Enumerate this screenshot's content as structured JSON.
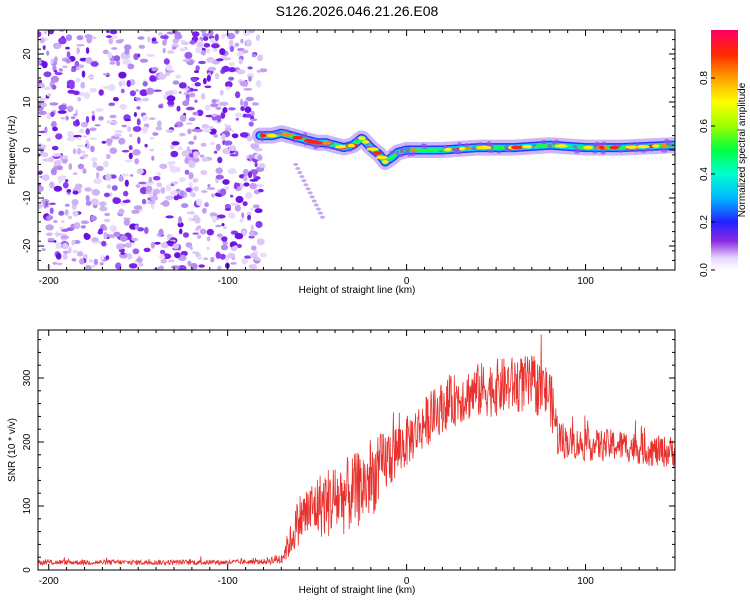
{
  "title": "S126.2026.046.21.26.E08",
  "chart_data": [
    {
      "type": "heatmap",
      "xlabel": "Height of straight line (km)",
      "ylabel": "Frequency (Hz)",
      "xlim": [
        -206,
        150
      ],
      "ylim": [
        -25,
        25
      ],
      "xticks": [
        -200,
        -100,
        0,
        100
      ],
      "yticks": [
        -20,
        -10,
        0,
        10,
        20
      ],
      "colorbar": {
        "label": "Normalized spectral amplitude",
        "range": [
          0,
          1
        ],
        "ticks": [
          "0.0",
          "0.2",
          "0.4",
          "0.6",
          "0.8"
        ],
        "tick_values": [
          0,
          0.2,
          0.4,
          0.6,
          0.8
        ]
      },
      "noise_region_x": [
        -206,
        -80
      ],
      "ridge": {
        "x": [
          -82,
          -75,
          -70,
          -65,
          -60,
          -55,
          -50,
          -45,
          -40,
          -35,
          -30,
          -25,
          -20,
          -15,
          -12,
          -8,
          -5,
          0,
          10,
          20,
          40,
          60,
          80,
          100,
          120,
          150
        ],
        "y": [
          3,
          3,
          3.5,
          3,
          2.5,
          2,
          1.5,
          1.5,
          1,
          0.5,
          1,
          2.5,
          0.5,
          -1,
          -2.5,
          -1.5,
          -0.5,
          0,
          0,
          0,
          0.5,
          0.5,
          1,
          0.5,
          0.5,
          1
        ]
      },
      "spur": {
        "x": [
          -62,
          -47
        ],
        "y": [
          -3,
          -14
        ]
      }
    },
    {
      "type": "line",
      "xlabel": "Height of straight line (km)",
      "ylabel": "SNR (10 * v/v)",
      "xlim": [
        -206,
        150
      ],
      "ylim": [
        0,
        375
      ],
      "xticks": [
        -200,
        -100,
        0,
        100
      ],
      "yticks": [
        0,
        100,
        200,
        300
      ],
      "series_color": "#e8302c",
      "envelope": {
        "x": [
          -206,
          -100,
          -80,
          -70,
          -65,
          -60,
          -50,
          -40,
          -30,
          -20,
          -10,
          0,
          10,
          20,
          30,
          40,
          50,
          60,
          70,
          80,
          85,
          90,
          100,
          110,
          120,
          130,
          140,
          150
        ],
        "y": [
          12,
          12,
          13,
          18,
          45,
          80,
          100,
          110,
          120,
          140,
          175,
          200,
          230,
          255,
          270,
          280,
          285,
          290,
          290,
          275,
          205,
          200,
          195,
          195,
          195,
          190,
          185,
          185
        ]
      },
      "noise_amplitude": {
        "x": [
          -206,
          -80,
          -70,
          -60,
          -40,
          -20,
          0,
          20,
          50,
          80,
          90,
          150
        ],
        "y": [
          4,
          4,
          10,
          40,
          60,
          60,
          40,
          40,
          45,
          45,
          25,
          25
        ]
      }
    }
  ]
}
